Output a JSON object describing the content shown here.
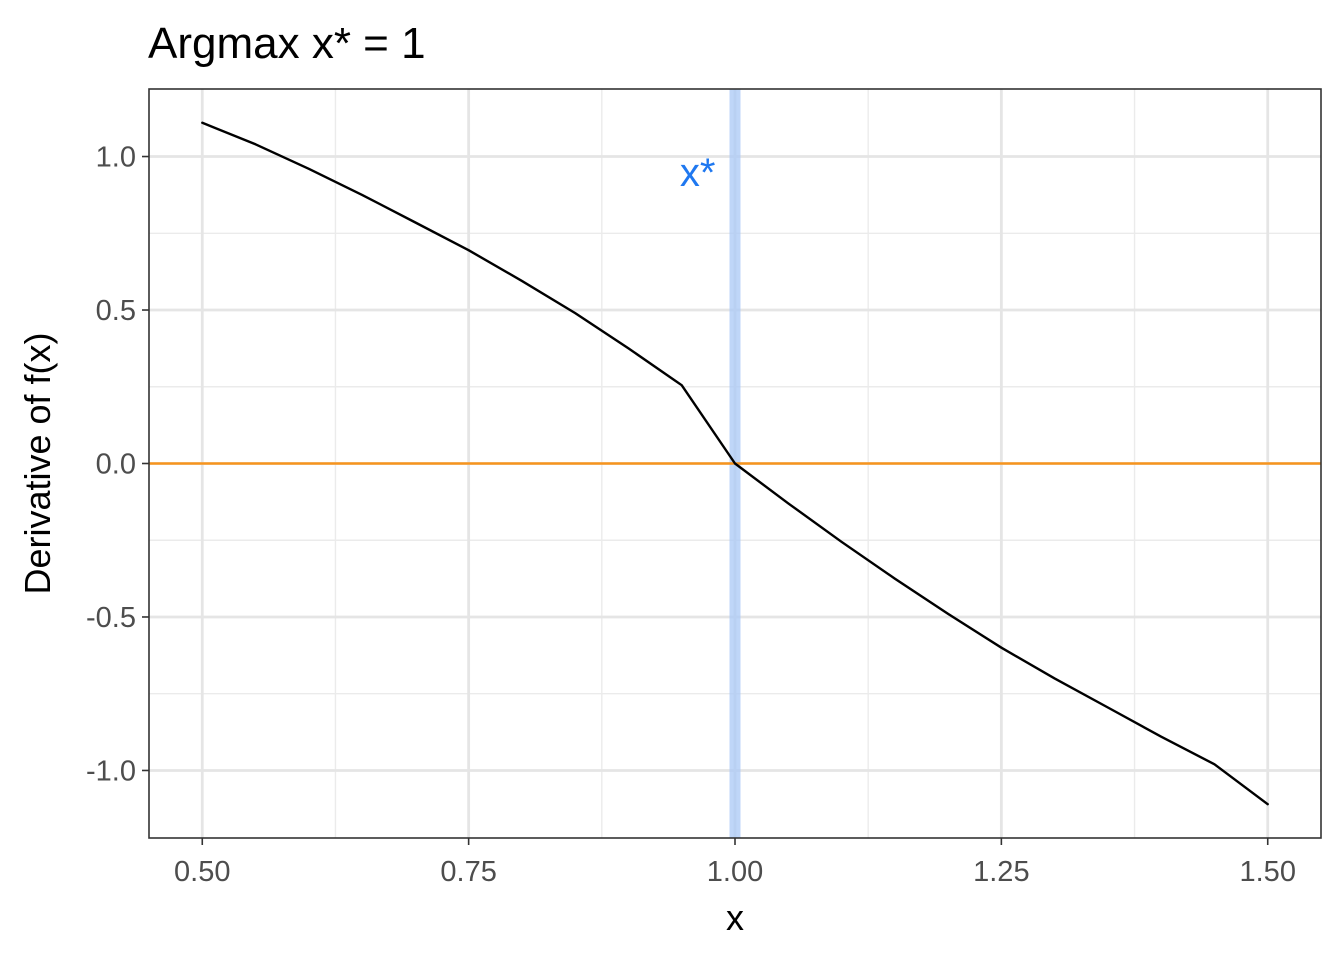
{
  "chart_data": {
    "type": "line",
    "title": "Argmax x* = 1",
    "xlabel": "x",
    "ylabel": "Derivative of f(x)",
    "xlim": [
      0.45,
      1.55
    ],
    "ylim": [
      -1.22,
      1.22
    ],
    "x_ticks": [
      0.5,
      0.75,
      1.0,
      1.25,
      1.5
    ],
    "x_tick_labels": [
      "0.50",
      "0.75",
      "1.00",
      "1.25",
      "1.50"
    ],
    "y_ticks": [
      -1.0,
      -0.5,
      0.0,
      0.5,
      1.0
    ],
    "y_tick_labels": [
      "-1.0",
      "-0.5",
      "0.0",
      "0.5",
      "1.0"
    ],
    "grid": true,
    "series": [
      {
        "color": "#000000",
        "x": [
          0.5,
          0.55,
          0.6,
          0.65,
          0.7,
          0.75,
          0.8,
          0.85,
          0.9,
          0.95,
          1.0,
          1.05,
          1.1,
          1.15,
          1.2,
          1.25,
          1.3,
          1.35,
          1.4,
          1.45,
          1.5
        ],
        "y": [
          1.11,
          1.04,
          0.96,
          0.875,
          0.785,
          0.695,
          0.595,
          0.49,
          0.375,
          0.255,
          0.0,
          -0.13,
          -0.255,
          -0.375,
          -0.49,
          -0.6,
          -0.7,
          -0.795,
          -0.89,
          -0.98,
          -1.11
        ]
      }
    ],
    "hline": {
      "y": 0.0,
      "color": "#f7941d"
    },
    "vline": {
      "x": 1.0,
      "color": "#a9c8f5"
    },
    "annotations": [
      {
        "text": "x*",
        "x": 0.965,
        "y": 0.95,
        "color": "#1f78f0"
      }
    ]
  }
}
